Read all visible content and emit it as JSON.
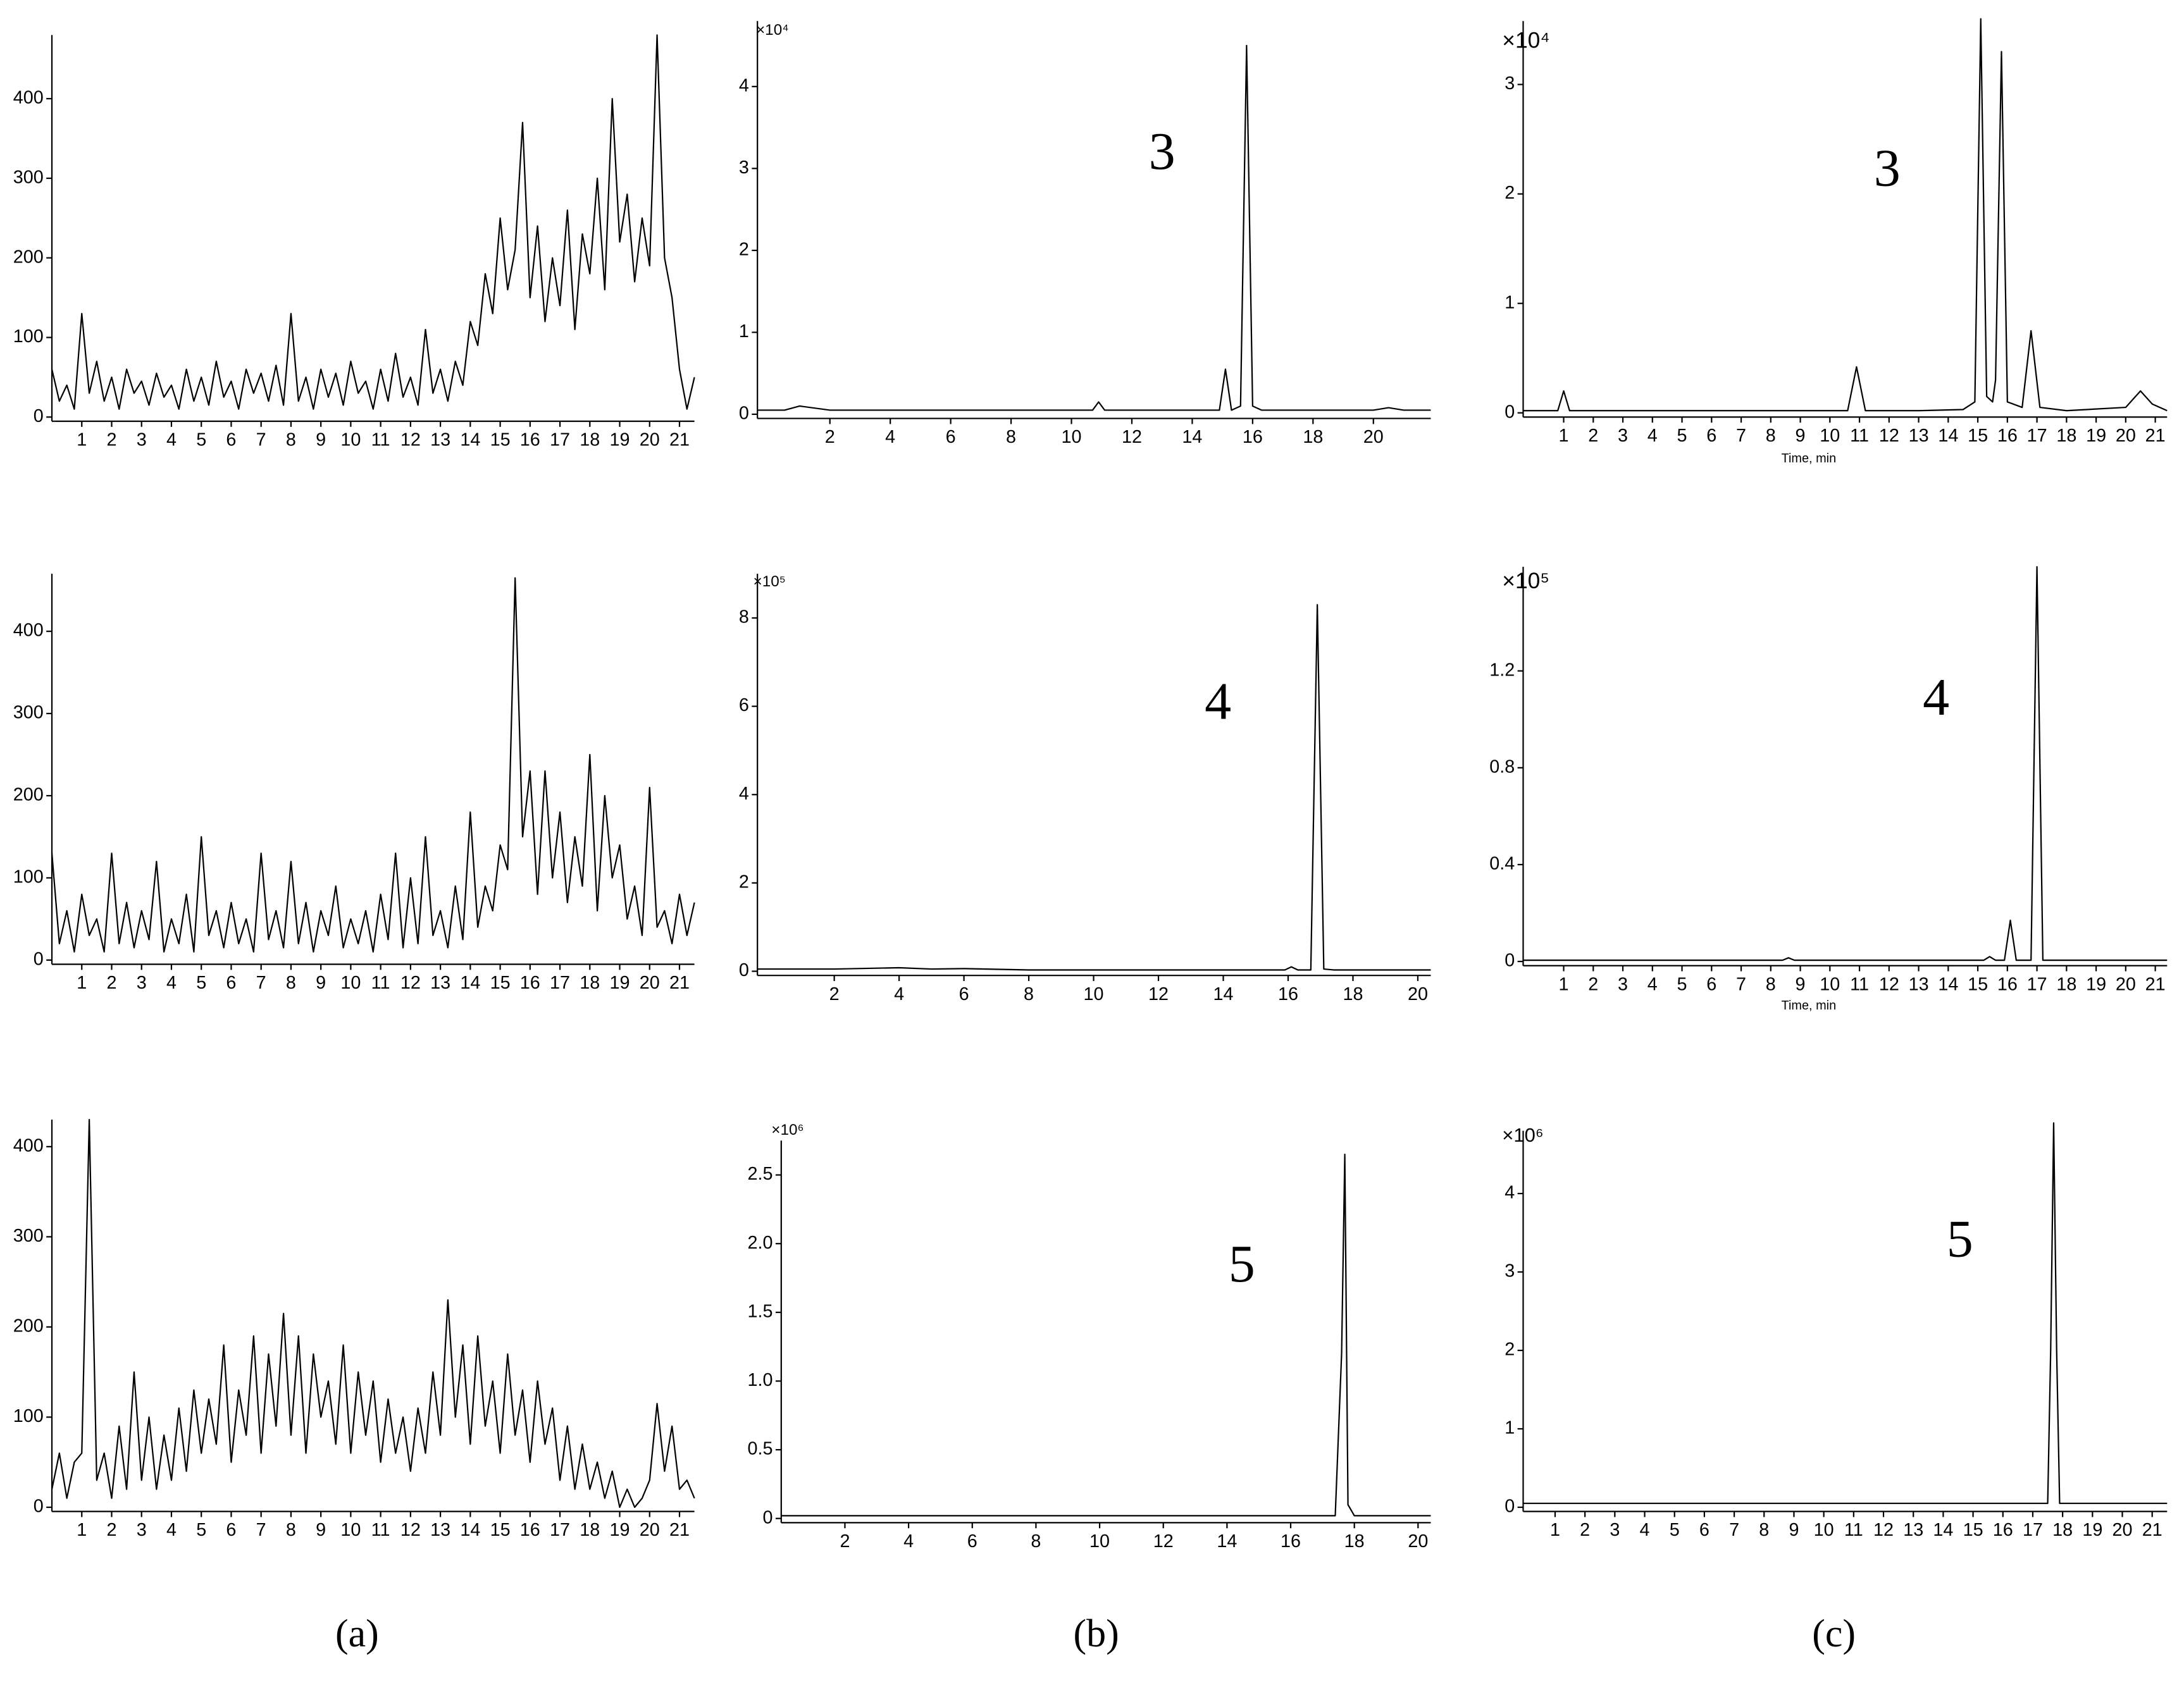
{
  "chart_data": [
    {
      "type": "line",
      "color": "#000000",
      "x": [
        0,
        0.25,
        0.5,
        0.75,
        1,
        1.25,
        1.5,
        1.75,
        2,
        2.25,
        2.5,
        2.75,
        3,
        3.25,
        3.5,
        3.75,
        4,
        4.25,
        4.5,
        4.75,
        5,
        5.25,
        5.5,
        5.75,
        6,
        6.25,
        6.5,
        6.75,
        7,
        7.25,
        7.5,
        7.75,
        8,
        8.25,
        8.5,
        8.75,
        9,
        9.25,
        9.5,
        9.75,
        10,
        10.25,
        10.5,
        10.75,
        11,
        11.25,
        11.5,
        11.75,
        12,
        12.25,
        12.5,
        12.75,
        13,
        13.25,
        13.5,
        13.75,
        14,
        14.25,
        14.5,
        14.75,
        15,
        15.25,
        15.5,
        15.75,
        16,
        16.25,
        16.5,
        16.75,
        17,
        17.25,
        17.5,
        17.75,
        18,
        18.25,
        18.5,
        18.75,
        19,
        19.25,
        19.5,
        19.75,
        20,
        20.25,
        20.5,
        20.75,
        21,
        21.25,
        21.5
      ],
      "values": [
        60,
        20,
        40,
        10,
        130,
        30,
        70,
        20,
        50,
        10,
        60,
        30,
        45,
        15,
        55,
        25,
        40,
        10,
        60,
        20,
        50,
        15,
        70,
        25,
        45,
        10,
        60,
        30,
        55,
        20,
        65,
        15,
        130,
        20,
        50,
        10,
        60,
        25,
        55,
        15,
        70,
        30,
        45,
        10,
        60,
        20,
        80,
        25,
        50,
        15,
        110,
        30,
        60,
        20,
        70,
        40,
        120,
        90,
        180,
        130,
        250,
        160,
        210,
        370,
        150,
        240,
        120,
        200,
        140,
        260,
        110,
        230,
        180,
        300,
        160,
        400,
        220,
        280,
        170,
        250,
        190,
        480,
        200,
        150,
        60,
        10,
        50
      ],
      "xlim": [
        0,
        21.5
      ],
      "ylim": [
        0,
        480
      ],
      "xticks": [
        1,
        2,
        3,
        4,
        5,
        6,
        7,
        8,
        9,
        10,
        11,
        12,
        13,
        14,
        15,
        16,
        17,
        18,
        19,
        20,
        21
      ],
      "yticks": [
        0,
        100,
        200,
        300,
        400
      ]
    },
    {
      "type": "line",
      "color": "#000000",
      "x": [
        -0.4,
        0.5,
        1,
        2,
        4,
        6,
        8,
        10,
        10.7,
        10.9,
        11.1,
        12,
        14,
        14.9,
        15.1,
        15.3,
        15.6,
        15.8,
        16.0,
        16.3,
        18,
        20,
        20.5,
        21,
        21.9
      ],
      "values": [
        0.05,
        0.05,
        0.1,
        0.05,
        0.05,
        0.05,
        0.05,
        0.05,
        0.05,
        0.15,
        0.05,
        0.05,
        0.05,
        0.05,
        0.55,
        0.05,
        0.1,
        4.5,
        0.1,
        0.05,
        0.05,
        0.05,
        0.08,
        0.05,
        0.05
      ],
      "xlim": [
        -0.4,
        21.9
      ],
      "ylim": [
        0,
        4.8
      ],
      "xticks": [
        2,
        4,
        6,
        8,
        10,
        12,
        14,
        16,
        18,
        20
      ],
      "yticks": [
        0,
        1,
        2,
        3,
        4
      ],
      "multiplier": "×10⁴",
      "annotation": "3"
    },
    {
      "type": "line",
      "color": "#000000",
      "x": [
        -0.37,
        0.8,
        1,
        1.2,
        3,
        5,
        8,
        10.6,
        10.9,
        11.2,
        13,
        14.5,
        14.9,
        15.1,
        15.3,
        15.5,
        15.6,
        15.8,
        16.0,
        16.5,
        16.8,
        17.1,
        18,
        20,
        20.5,
        20.9,
        21.4
      ],
      "values": [
        0.02,
        0.02,
        0.2,
        0.02,
        0.02,
        0.02,
        0.02,
        0.02,
        0.42,
        0.02,
        0.02,
        0.03,
        0.1,
        3.6,
        0.15,
        0.1,
        0.3,
        3.3,
        0.1,
        0.05,
        0.75,
        0.05,
        0.02,
        0.05,
        0.2,
        0.08,
        0.02
      ],
      "xlim": [
        -0.37,
        21.4
      ],
      "ylim": [
        0,
        3.58
      ],
      "xticks": [
        1,
        2,
        3,
        4,
        5,
        6,
        7,
        8,
        9,
        10,
        11,
        12,
        13,
        14,
        15,
        16,
        17,
        18,
        19,
        20,
        21
      ],
      "yticks": [
        0,
        1,
        2,
        3
      ],
      "multiplier": "×10⁴",
      "annotation": "3",
      "xlabel": "Time, min"
    },
    {
      "type": "line",
      "color": "#000000",
      "x": [
        0,
        0.25,
        0.5,
        0.75,
        1,
        1.25,
        1.5,
        1.75,
        2,
        2.25,
        2.5,
        2.75,
        3,
        3.25,
        3.5,
        3.75,
        4,
        4.25,
        4.5,
        4.75,
        5,
        5.25,
        5.5,
        5.75,
        6,
        6.25,
        6.5,
        6.75,
        7,
        7.25,
        7.5,
        7.75,
        8,
        8.25,
        8.5,
        8.75,
        9,
        9.25,
        9.5,
        9.75,
        10,
        10.25,
        10.5,
        10.75,
        11,
        11.25,
        11.5,
        11.75,
        12,
        12.25,
        12.5,
        12.75,
        13,
        13.25,
        13.5,
        13.75,
        14,
        14.25,
        14.5,
        14.75,
        15,
        15.25,
        15.5,
        15.75,
        16,
        16.25,
        16.5,
        16.75,
        17,
        17.25,
        17.5,
        17.75,
        18,
        18.25,
        18.5,
        18.75,
        19,
        19.25,
        19.5,
        19.75,
        20,
        20.25,
        20.5,
        20.75,
        21,
        21.25,
        21.5
      ],
      "values": [
        130,
        20,
        60,
        10,
        80,
        30,
        50,
        10,
        130,
        20,
        70,
        15,
        60,
        25,
        120,
        10,
        50,
        20,
        80,
        10,
        150,
        30,
        60,
        15,
        70,
        20,
        50,
        10,
        130,
        25,
        60,
        15,
        120,
        20,
        70,
        10,
        60,
        30,
        90,
        15,
        50,
        20,
        60,
        10,
        80,
        25,
        130,
        15,
        100,
        20,
        150,
        30,
        60,
        15,
        90,
        25,
        180,
        40,
        90,
        60,
        140,
        110,
        465,
        150,
        230,
        80,
        230,
        100,
        180,
        70,
        150,
        90,
        250,
        60,
        200,
        100,
        140,
        50,
        90,
        30,
        210,
        40,
        60,
        20,
        80,
        30,
        70
      ],
      "xlim": [
        0,
        21.5
      ],
      "ylim": [
        0,
        470
      ],
      "xticks": [
        1,
        2,
        3,
        4,
        5,
        6,
        7,
        8,
        9,
        10,
        11,
        12,
        13,
        14,
        15,
        16,
        17,
        18,
        19,
        20,
        21
      ],
      "yticks": [
        0,
        100,
        200,
        300,
        400
      ]
    },
    {
      "type": "line",
      "color": "#000000",
      "x": [
        -0.37,
        2,
        4,
        5,
        6,
        8,
        10,
        12,
        14,
        15.9,
        16.1,
        16.3,
        16.7,
        16.9,
        17.1,
        17.4,
        18,
        20,
        20.4
      ],
      "values": [
        0.05,
        0.05,
        0.08,
        0.05,
        0.06,
        0.03,
        0.03,
        0.03,
        0.03,
        0.03,
        0.1,
        0.03,
        0.03,
        8.3,
        0.05,
        0.03,
        0.03,
        0.03,
        0.03
      ],
      "xlim": [
        -0.37,
        20.4
      ],
      "ylim": [
        0,
        9.0
      ],
      "xticks": [
        2,
        4,
        6,
        8,
        10,
        12,
        14,
        16,
        18,
        20
      ],
      "yticks": [
        0,
        2,
        4,
        6,
        8
      ],
      "multiplier": "×10⁵",
      "annotation": "4"
    },
    {
      "type": "line",
      "color": "#000000",
      "x": [
        -0.37,
        3,
        8.4,
        8.6,
        8.8,
        14,
        15.2,
        15.4,
        15.6,
        15.9,
        16.1,
        16.3,
        16.8,
        17.0,
        17.2,
        19,
        21.4
      ],
      "values": [
        0.005,
        0.005,
        0.005,
        0.015,
        0.005,
        0.005,
        0.005,
        0.02,
        0.005,
        0.005,
        0.17,
        0.005,
        0.005,
        1.63,
        0.005,
        0.005,
        0.005
      ],
      "xlim": [
        -0.37,
        21.4
      ],
      "ylim": [
        0,
        1.63
      ],
      "xticks": [
        1,
        2,
        3,
        4,
        5,
        6,
        7,
        8,
        9,
        10,
        11,
        12,
        13,
        14,
        15,
        16,
        17,
        18,
        19,
        20,
        21
      ],
      "yticks": [
        0,
        0.4,
        0.8,
        1.2
      ],
      "multiplier": "×10⁵",
      "annotation": "4",
      "xlabel": "Time, min"
    },
    {
      "type": "line",
      "color": "#000000",
      "x": [
        0,
        0.25,
        0.5,
        0.75,
        1,
        1.25,
        1.5,
        1.75,
        2,
        2.25,
        2.5,
        2.75,
        3,
        3.25,
        3.5,
        3.75,
        4,
        4.25,
        4.5,
        4.75,
        5,
        5.25,
        5.5,
        5.75,
        6,
        6.25,
        6.5,
        6.75,
        7,
        7.25,
        7.5,
        7.75,
        8,
        8.25,
        8.5,
        8.75,
        9,
        9.25,
        9.5,
        9.75,
        10,
        10.25,
        10.5,
        10.75,
        11,
        11.25,
        11.5,
        11.75,
        12,
        12.25,
        12.5,
        12.75,
        13,
        13.25,
        13.5,
        13.75,
        14,
        14.25,
        14.5,
        14.75,
        15,
        15.25,
        15.5,
        15.75,
        16,
        16.25,
        16.5,
        16.75,
        17,
        17.25,
        17.5,
        17.75,
        18,
        18.25,
        18.5,
        18.75,
        19,
        19.25,
        19.5,
        19.75,
        20,
        20.25,
        20.5,
        20.75,
        21,
        21.25,
        21.5
      ],
      "values": [
        20,
        60,
        10,
        50,
        60,
        430,
        30,
        60,
        10,
        90,
        20,
        150,
        30,
        100,
        20,
        80,
        30,
        110,
        40,
        130,
        60,
        120,
        70,
        180,
        50,
        130,
        80,
        190,
        60,
        170,
        90,
        215,
        80,
        190,
        60,
        170,
        100,
        140,
        70,
        180,
        60,
        150,
        80,
        140,
        50,
        120,
        60,
        100,
        40,
        110,
        60,
        150,
        80,
        230,
        100,
        180,
        70,
        190,
        90,
        140,
        60,
        170,
        80,
        130,
        50,
        140,
        70,
        110,
        30,
        90,
        20,
        70,
        20,
        50,
        10,
        40,
        0,
        20,
        0,
        10,
        30,
        115,
        40,
        90,
        20,
        30,
        10
      ],
      "xlim": [
        0,
        21.5
      ],
      "ylim": [
        0,
        430
      ],
      "xticks": [
        1,
        2,
        3,
        4,
        5,
        6,
        7,
        8,
        9,
        10,
        11,
        12,
        13,
        14,
        15,
        16,
        17,
        18,
        19,
        20,
        21
      ],
      "yticks": [
        0,
        100,
        200,
        300,
        400
      ]
    },
    {
      "type": "line",
      "color": "#000000",
      "x": [
        0,
        2,
        4,
        6,
        8,
        10,
        12,
        14,
        16,
        17.4,
        17.6,
        17.7,
        17.8,
        18,
        20,
        20.4
      ],
      "values": [
        0.02,
        0.02,
        0.02,
        0.02,
        0.02,
        0.02,
        0.02,
        0.02,
        0.02,
        0.02,
        1.2,
        2.65,
        0.1,
        0.02,
        0.02,
        0.02
      ],
      "xlim": [
        0,
        20.4
      ],
      "ylim": [
        0,
        2.75
      ],
      "xticks": [
        2,
        4,
        6,
        8,
        10,
        12,
        14,
        16,
        18,
        20
      ],
      "yticks": [
        0,
        0.5,
        {
          "value": 1,
          "label": "1.0"
        },
        1.5,
        {
          "value": 2,
          "label": "2.0"
        },
        2.5
      ],
      "multiplier": "×10⁶",
      "annotation": "5"
    },
    {
      "type": "line",
      "color": "#000000",
      "x": [
        -0.07,
        5,
        10,
        15,
        17.5,
        17.6,
        17.7,
        17.8,
        17.9,
        19,
        21.5
      ],
      "values": [
        0.05,
        0.05,
        0.05,
        0.05,
        0.05,
        2,
        4.9,
        2,
        0.05,
        0.05,
        0.05
      ],
      "xlim": [
        -0.07,
        21.5
      ],
      "ylim": [
        0,
        4.8
      ],
      "xticks": [
        1,
        2,
        3,
        4,
        5,
        6,
        7,
        8,
        9,
        10,
        11,
        12,
        13,
        14,
        15,
        16,
        17,
        18,
        19,
        20,
        21
      ],
      "yticks": [
        0,
        1,
        2,
        3,
        4
      ],
      "multiplier": "×10⁶",
      "annotation": "5"
    }
  ],
  "panel_labels": [
    "(a)",
    "(b)",
    "(c)"
  ]
}
